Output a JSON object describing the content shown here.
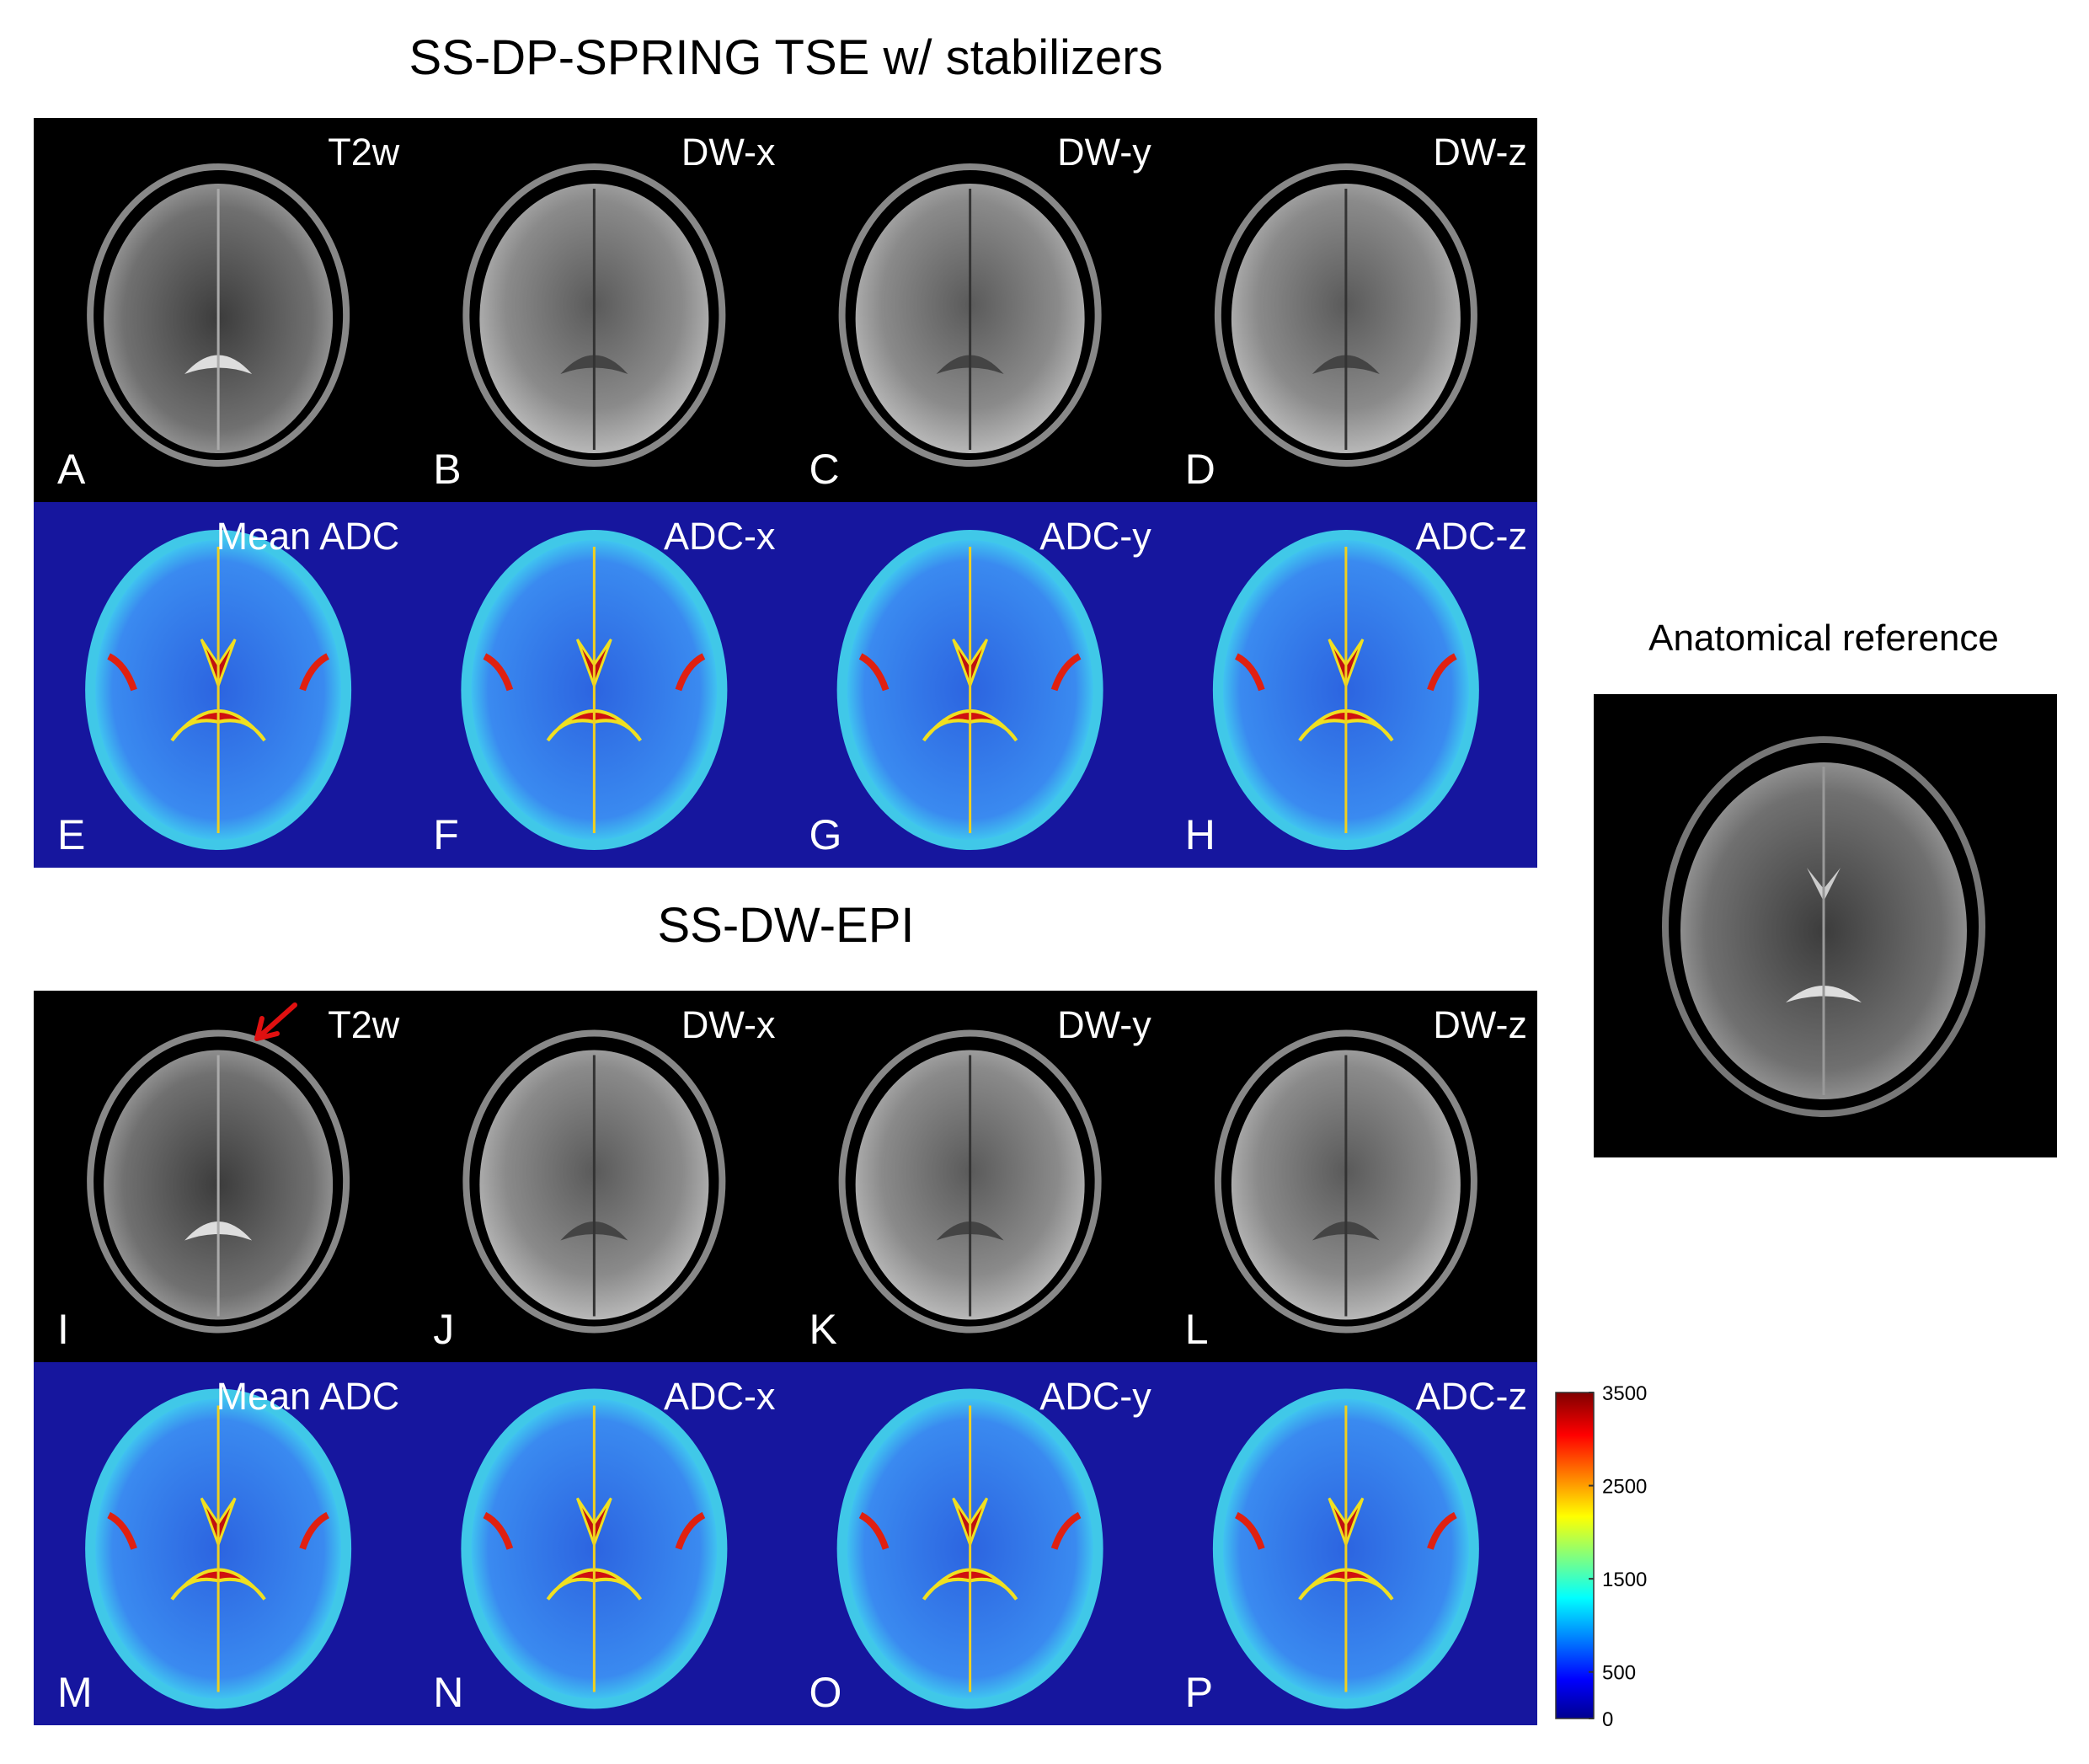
{
  "sections": [
    {
      "title": "SS-DP-SPRING TSE w/ stabilizers",
      "rows": [
        {
          "panels": [
            {
              "label": "T2w",
              "letter": "A"
            },
            {
              "label": "DW-x",
              "letter": "B"
            },
            {
              "label": "DW-y",
              "letter": "C"
            },
            {
              "label": "DW-z",
              "letter": "D"
            }
          ]
        },
        {
          "panels": [
            {
              "label": "Mean ADC",
              "letter": "E"
            },
            {
              "label": "ADC-x",
              "letter": "F"
            },
            {
              "label": "ADC-y",
              "letter": "G"
            },
            {
              "label": "ADC-z",
              "letter": "H"
            }
          ]
        }
      ]
    },
    {
      "title": "SS-DW-EPI",
      "rows": [
        {
          "panels": [
            {
              "label": "T2w",
              "letter": "I"
            },
            {
              "label": "DW-x",
              "letter": "J"
            },
            {
              "label": "DW-y",
              "letter": "K"
            },
            {
              "label": "DW-z",
              "letter": "L"
            }
          ]
        },
        {
          "panels": [
            {
              "label": "Mean ADC",
              "letter": "M"
            },
            {
              "label": "ADC-x",
              "letter": "N"
            },
            {
              "label": "ADC-y",
              "letter": "O"
            },
            {
              "label": "ADC-z",
              "letter": "P"
            }
          ]
        }
      ]
    }
  ],
  "anatomical_reference": {
    "title": "Anatomical reference"
  },
  "colorbar": {
    "lim": [
      0,
      3500
    ],
    "ticks": [
      0,
      500,
      1500,
      2500,
      3500
    ]
  }
}
